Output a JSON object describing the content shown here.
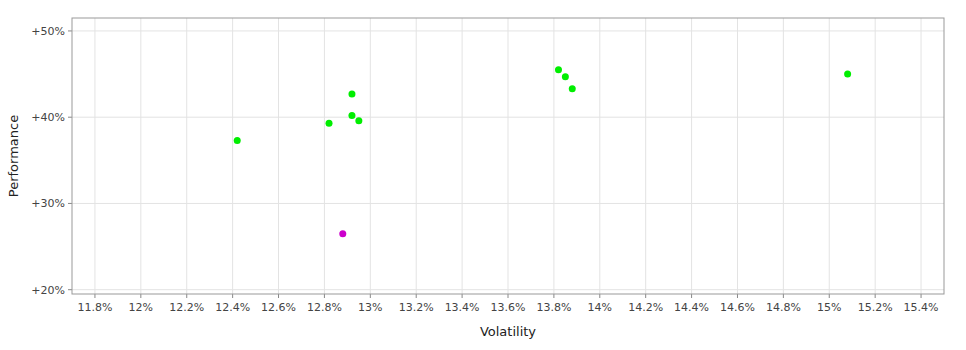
{
  "chart_data": {
    "type": "scatter",
    "xlabel": "Volatility",
    "ylabel": "Performance",
    "xlim": [
      0.117,
      0.155
    ],
    "ylim": [
      0.195,
      0.515
    ],
    "xticks": [
      {
        "value": 0.118,
        "label": "11.8%"
      },
      {
        "value": 0.12,
        "label": "12%"
      },
      {
        "value": 0.122,
        "label": "12.2%"
      },
      {
        "value": 0.124,
        "label": "12.4%"
      },
      {
        "value": 0.126,
        "label": "12.6%"
      },
      {
        "value": 0.128,
        "label": "12.8%"
      },
      {
        "value": 0.13,
        "label": "13%"
      },
      {
        "value": 0.132,
        "label": "13.2%"
      },
      {
        "value": 0.134,
        "label": "13.4%"
      },
      {
        "value": 0.136,
        "label": "13.6%"
      },
      {
        "value": 0.138,
        "label": "13.8%"
      },
      {
        "value": 0.14,
        "label": "14%"
      },
      {
        "value": 0.142,
        "label": "14.2%"
      },
      {
        "value": 0.144,
        "label": "14.4%"
      },
      {
        "value": 0.146,
        "label": "14.6%"
      },
      {
        "value": 0.148,
        "label": "14.8%"
      },
      {
        "value": 0.15,
        "label": "15%"
      },
      {
        "value": 0.152,
        "label": "15.2%"
      },
      {
        "value": 0.154,
        "label": "15.4%"
      }
    ],
    "yticks": [
      {
        "value": 0.2,
        "label": "+20%"
      },
      {
        "value": 0.3,
        "label": "+30%"
      },
      {
        "value": 0.4,
        "label": "+40%"
      },
      {
        "value": 0.5,
        "label": "+50%"
      }
    ],
    "grid": true,
    "series": [
      {
        "color": "#00ee00",
        "x": [
          0.1242,
          0.1282,
          0.1292,
          0.1295,
          0.1292,
          0.1382,
          0.1385,
          0.1388,
          0.1508
        ],
        "values": [
          0.373,
          0.393,
          0.402,
          0.396,
          0.427,
          0.455,
          0.447,
          0.433,
          0.45
        ]
      },
      {
        "color": "#cc00cc",
        "x": [
          0.1288
        ],
        "values": [
          0.265
        ]
      }
    ]
  }
}
